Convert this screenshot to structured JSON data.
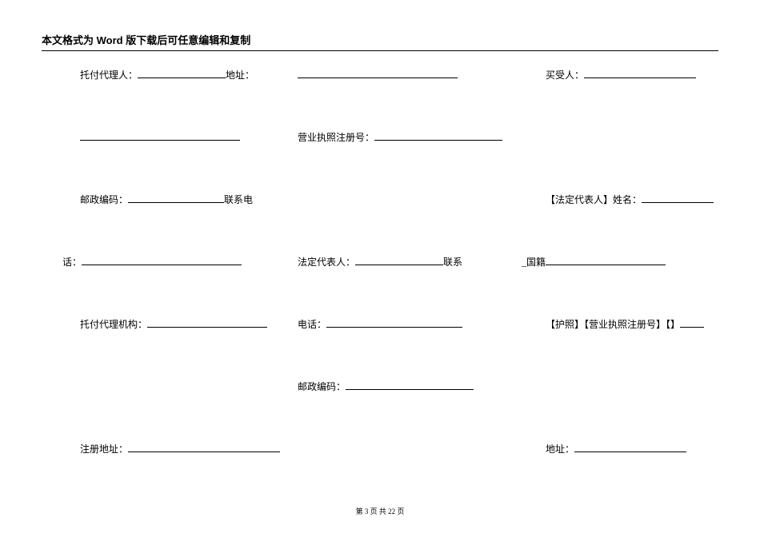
{
  "header": {
    "title": "本文格式为 Word 版下载后可任意编辑和复制"
  },
  "rows": [
    {
      "c1": {
        "pre_blank": false,
        "label1": "托付代理人：",
        "u1": 110,
        "label2": "地址：",
        "u2": 0
      },
      "c2": {
        "label1": "",
        "u1": 200,
        "label2": "",
        "u2": 0
      },
      "c3": {
        "label1": "买受人：",
        "u1": 140,
        "label2": "",
        "u2": 0
      }
    },
    {
      "c1": {
        "pre_blank": true,
        "label1": "",
        "u1": 200,
        "label2": "",
        "u2": 0
      },
      "c2": {
        "label1": "营业执照注册号：",
        "u1": 160,
        "label2": "",
        "u2": 0
      },
      "c3": {
        "label1": "",
        "u1": 0,
        "label2": "",
        "u2": 0
      }
    },
    {
      "c1": {
        "pre_blank": false,
        "label1": "邮政编码：",
        "u1": 120,
        "label2": "联系电",
        "u2": 0
      },
      "c2": {
        "label1": "",
        "u1": 0,
        "label2": "",
        "u2": 0
      },
      "c3": {
        "label1": "【法定代表人】姓名：",
        "u1": 90,
        "label2": "",
        "u2": 0
      }
    },
    {
      "c1": {
        "pre_blank": false,
        "label1": "话：",
        "u1": 200,
        "label2": "",
        "u2": 0,
        "indent": -22
      },
      "c2": {
        "label1": "法定代表人：",
        "u1": 110,
        "label2": "联系",
        "u2": 0
      },
      "c3": {
        "label1": "_国籍",
        "u1": 150,
        "label2": "",
        "u2": 0,
        "indent": -30
      }
    },
    {
      "c1": {
        "pre_blank": false,
        "label1": "托付代理机构：",
        "u1": 150,
        "label2": "",
        "u2": 0
      },
      "c2": {
        "label1": "电话：",
        "u1": 170,
        "label2": "",
        "u2": 0
      },
      "c3": {
        "label1": "【护照】【营业执照注册号】【】",
        "u1": 30,
        "label2": "",
        "u2": 0
      }
    },
    {
      "c1": {
        "pre_blank": false,
        "label1": "",
        "u1": 0,
        "label2": "",
        "u2": 0
      },
      "c2": {
        "label1": "邮政编码：",
        "u1": 160,
        "label2": "",
        "u2": 0
      },
      "c3": {
        "label1": "",
        "u1": 0,
        "label2": "",
        "u2": 0
      }
    },
    {
      "c1": {
        "pre_blank": false,
        "label1": "注册地址：",
        "u1": 190,
        "label2": "",
        "u2": 0
      },
      "c2": {
        "label1": "",
        "u1": 0,
        "label2": "",
        "u2": 0
      },
      "c3": {
        "label1": "地址：",
        "u1": 140,
        "label2": "",
        "u2": 0
      }
    }
  ],
  "footer": {
    "prefix": "第 ",
    "page": "3",
    "mid": " 页 共 ",
    "total": "22",
    "suffix": " 页"
  }
}
